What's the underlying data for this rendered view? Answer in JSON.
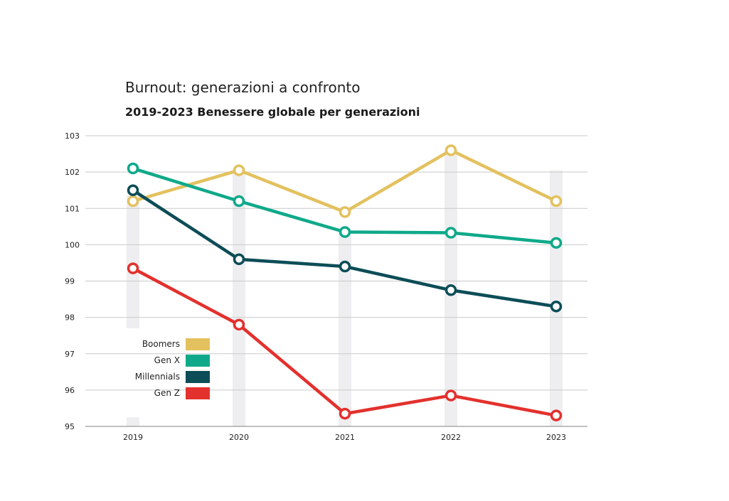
{
  "chart_data": {
    "type": "line",
    "title": "Burnout: generazioni a confronto",
    "subtitle": "2019-2023 Benessere globale per generazioni",
    "xlabel": "",
    "ylabel": "",
    "categories": [
      "2019",
      "2020",
      "2021",
      "2022",
      "2023"
    ],
    "ylim": [
      95,
      103
    ],
    "yticks": [
      "95",
      "96",
      "97",
      "98",
      "99",
      "100",
      "101",
      "102",
      "103"
    ],
    "grid": true,
    "legend_position": "bottom-left",
    "series": [
      {
        "name": "Boomers",
        "color": "#e3c15e",
        "values": [
          101.2,
          102.05,
          100.9,
          102.6,
          101.2
        ]
      },
      {
        "name": "Gen X",
        "color": "#0fa98a",
        "values": [
          102.1,
          101.2,
          100.35,
          100.33,
          100.05
        ]
      },
      {
        "name": "Millennials",
        "color": "#0c4d57",
        "values": [
          101.5,
          99.6,
          99.4,
          98.75,
          98.3
        ]
      },
      {
        "name": "Gen Z",
        "color": "#e3312d",
        "values": [
          99.35,
          97.8,
          95.35,
          95.85,
          95.3
        ]
      }
    ]
  }
}
